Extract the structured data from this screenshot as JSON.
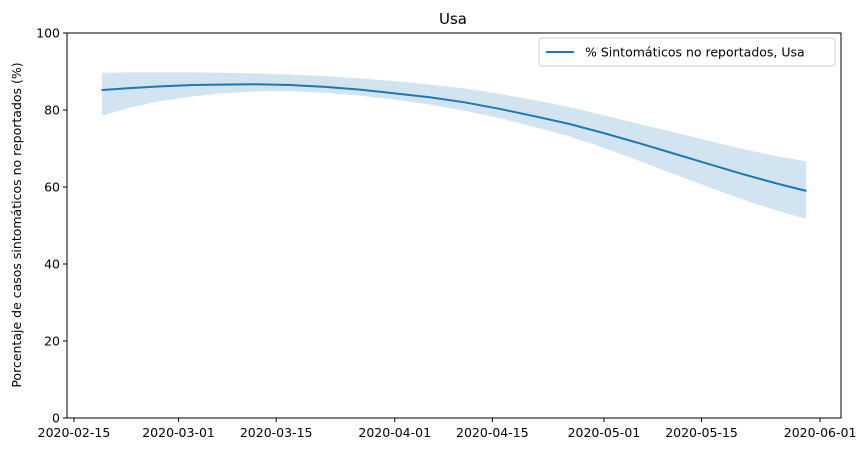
{
  "chart_data": {
    "type": "line",
    "title": "Usa",
    "xlabel": "",
    "ylabel": "Porcentaje de casos sintomáticos no reportados (%)",
    "xlim": [
      "2020-02-14",
      "2020-06-04"
    ],
    "ylim": [
      0,
      100
    ],
    "x_ticks": [
      "2020-02-15",
      "2020-03-01",
      "2020-03-15",
      "2020-04-01",
      "2020-04-15",
      "2020-05-01",
      "2020-05-15",
      "2020-06-01"
    ],
    "y_ticks": [
      0,
      20,
      40,
      60,
      80,
      100
    ],
    "grid": false,
    "legend_position": "top-right",
    "series": [
      {
        "name": "% Sintomáticos no reportados, Usa",
        "color": "#1f77b4",
        "band_color": "#1f77b4",
        "points": [
          {
            "x": "2020-02-19",
            "y": 85.2,
            "lower": 78.5,
            "upper": 89.7
          },
          {
            "x": "2020-02-23",
            "y": 85.7,
            "lower": 80.6,
            "upper": 89.8
          },
          {
            "x": "2020-02-27",
            "y": 86.1,
            "lower": 82.2,
            "upper": 89.8
          },
          {
            "x": "2020-03-03",
            "y": 86.5,
            "lower": 83.5,
            "upper": 89.8
          },
          {
            "x": "2020-03-07",
            "y": 86.6,
            "lower": 84.3,
            "upper": 89.7
          },
          {
            "x": "2020-03-12",
            "y": 86.7,
            "lower": 84.8,
            "upper": 89.5
          },
          {
            "x": "2020-03-17",
            "y": 86.5,
            "lower": 84.9,
            "upper": 89.2
          },
          {
            "x": "2020-03-22",
            "y": 86.0,
            "lower": 84.5,
            "upper": 88.8
          },
          {
            "x": "2020-03-27",
            "y": 85.3,
            "lower": 83.7,
            "upper": 88.2
          },
          {
            "x": "2020-04-01",
            "y": 84.3,
            "lower": 82.7,
            "upper": 87.5
          },
          {
            "x": "2020-04-06",
            "y": 83.3,
            "lower": 81.4,
            "upper": 86.6
          },
          {
            "x": "2020-04-11",
            "y": 82.0,
            "lower": 79.8,
            "upper": 85.6
          },
          {
            "x": "2020-04-16",
            "y": 80.3,
            "lower": 77.9,
            "upper": 84.2
          },
          {
            "x": "2020-04-21",
            "y": 78.4,
            "lower": 75.6,
            "upper": 82.6
          },
          {
            "x": "2020-04-26",
            "y": 76.4,
            "lower": 73.2,
            "upper": 80.8
          },
          {
            "x": "2020-05-01",
            "y": 74.0,
            "lower": 70.2,
            "upper": 78.6
          },
          {
            "x": "2020-05-06",
            "y": 71.4,
            "lower": 66.8,
            "upper": 76.4
          },
          {
            "x": "2020-05-11",
            "y": 68.7,
            "lower": 63.4,
            "upper": 74.2
          },
          {
            "x": "2020-05-16",
            "y": 66.0,
            "lower": 60.0,
            "upper": 72.0
          },
          {
            "x": "2020-05-21",
            "y": 63.3,
            "lower": 56.7,
            "upper": 69.8
          },
          {
            "x": "2020-05-26",
            "y": 60.8,
            "lower": 53.8,
            "upper": 67.9
          },
          {
            "x": "2020-05-30",
            "y": 59.0,
            "lower": 51.7,
            "upper": 66.7
          }
        ]
      }
    ]
  }
}
